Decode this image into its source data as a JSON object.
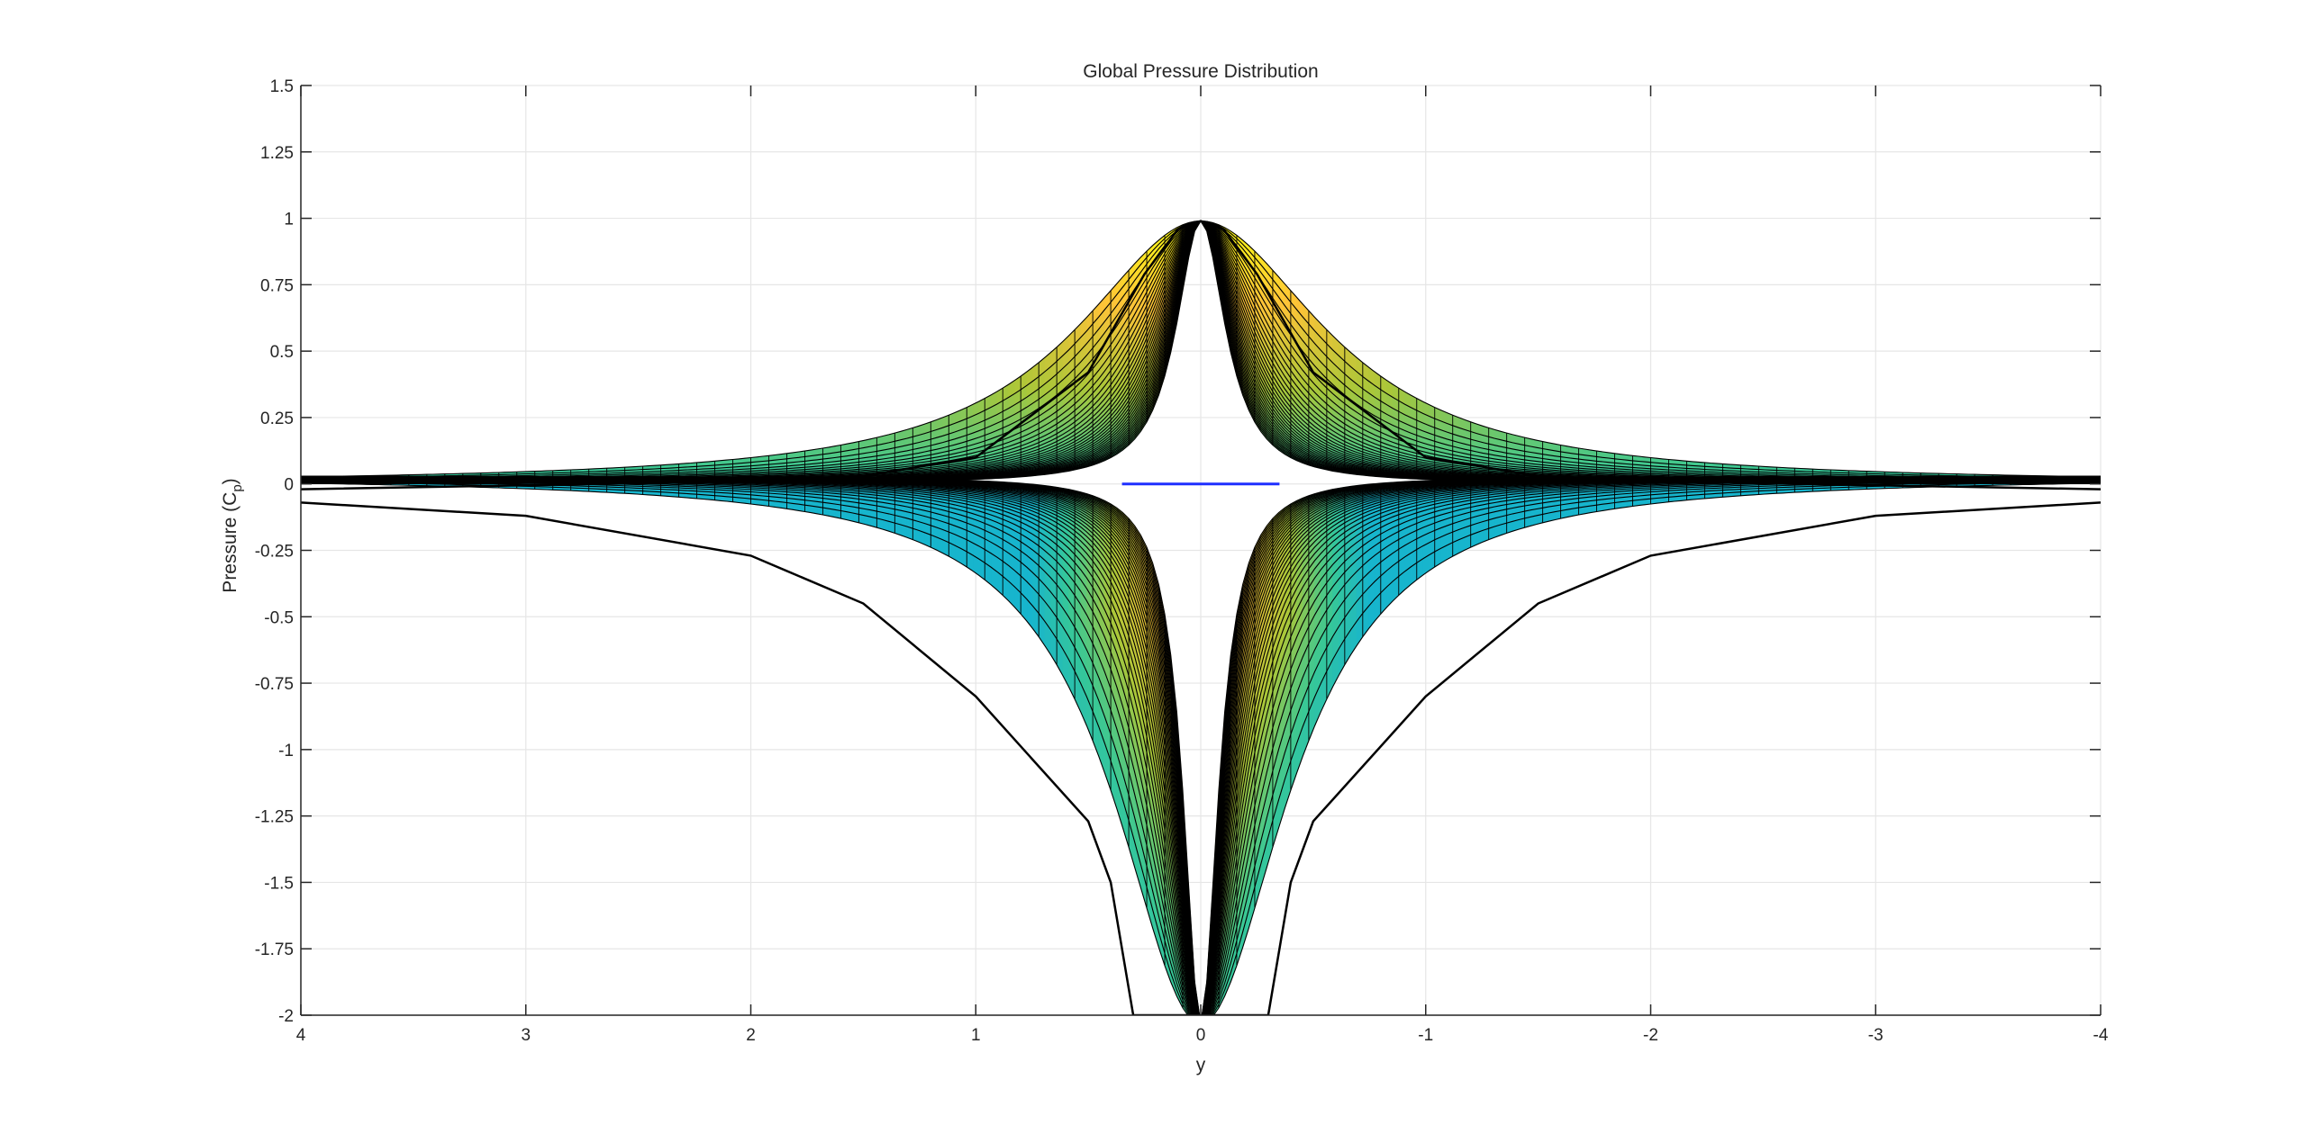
{
  "chart_data": {
    "type": "surface",
    "title": "Global Pressure Distribution",
    "xlabel": "y",
    "ylabel_main": "Pressure (C",
    "ylabel_sub": "p",
    "ylabel_close": ")",
    "xlim": [
      4,
      -4
    ],
    "ylim": [
      -2,
      1.5
    ],
    "x_reversed": true,
    "grid": true,
    "x_ticks": [
      4,
      3,
      2,
      1,
      0,
      -1,
      -2,
      -3,
      -4
    ],
    "x_tick_labels": [
      "4",
      "3",
      "2",
      "1",
      "0",
      "-1",
      "-2",
      "-3",
      "-4"
    ],
    "y_ticks": [
      1.5,
      1.25,
      1,
      0.75,
      0.5,
      0.25,
      0,
      -0.25,
      -0.5,
      -0.75,
      -1,
      -1.25,
      -1.5,
      -1.75,
      -2
    ],
    "y_tick_labels": [
      "1.5",
      "1.25",
      "1",
      "0.75",
      "0.5",
      "0.25",
      "0",
      "-0.25",
      "-0.5",
      "-0.75",
      "-1",
      "-1.25",
      "-1.5",
      "-1.75",
      "-2"
    ],
    "series": [
      {
        "kind": "upper_surface_envelope",
        "points": [
          [
            4,
            -0.02
          ],
          [
            3,
            -0.005
          ],
          [
            2,
            0.01
          ],
          [
            1.5,
            0.03
          ],
          [
            1,
            0.1
          ],
          [
            0.5,
            0.42
          ],
          [
            0.25,
            0.79
          ],
          [
            0.1,
            0.96
          ],
          [
            0,
            0.99
          ],
          [
            -0.1,
            0.96
          ],
          [
            -0.25,
            0.79
          ],
          [
            -0.5,
            0.42
          ],
          [
            -1,
            0.1
          ],
          [
            -1.5,
            0.03
          ],
          [
            -2,
            0.01
          ],
          [
            -3,
            -0.005
          ],
          [
            -4,
            -0.02
          ]
        ]
      },
      {
        "kind": "lower_surface_envelope",
        "points": [
          [
            4,
            -0.07
          ],
          [
            3,
            -0.12
          ],
          [
            2,
            -0.27
          ],
          [
            1.5,
            -0.45
          ],
          [
            1,
            -0.8
          ],
          [
            0.5,
            -1.27
          ],
          [
            0.4,
            -1.5
          ],
          [
            0.3,
            -2
          ],
          [
            -0.3,
            -2
          ],
          [
            -0.4,
            -1.5
          ],
          [
            -0.5,
            -1.27
          ],
          [
            -1,
            -0.8
          ],
          [
            -1.5,
            -0.45
          ],
          [
            -2,
            -0.27
          ],
          [
            -3,
            -0.12
          ],
          [
            -4,
            -0.07
          ]
        ]
      },
      {
        "kind": "airfoil_line",
        "x": [
          0.35,
          -0.35
        ],
        "y": [
          0,
          0
        ]
      }
    ],
    "colormap": "parula",
    "colors": {
      "mesh_edges": "#000000",
      "airfoil_line": "#1f2fff",
      "grid": "#e6e6e6",
      "axes": "#262626"
    }
  }
}
